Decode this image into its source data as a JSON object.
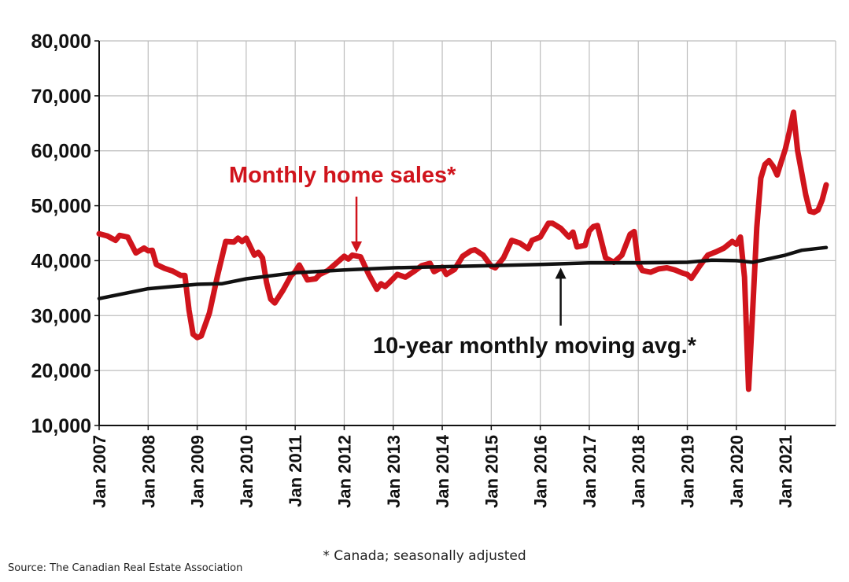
{
  "chart_data": {
    "type": "line",
    "title": "",
    "xlabel": "",
    "ylabel": "",
    "ylim": [
      10000,
      80000
    ],
    "xlim": [
      "2007-01",
      "2021-11"
    ],
    "grid": true,
    "ytick_labels": [
      "10,000",
      "20,000",
      "30,000",
      "40,000",
      "50,000",
      "60,000",
      "70,000",
      "80,000"
    ],
    "ytick_values": [
      10000,
      20000,
      30000,
      40000,
      50000,
      60000,
      70000,
      80000
    ],
    "xtick_labels": [
      "Jan 2007",
      "Jan 2008",
      "Jan 2009",
      "Jan 2010",
      "Jan 2011",
      "Jan 2012",
      "Jan 2013",
      "Jan 2014",
      "Jan 2015",
      "Jan 2016",
      "Jan 2017",
      "Jan 2018",
      "Jan 2019",
      "Jan 2020",
      "Jan 2021"
    ],
    "xtick_values": [
      "2007-01",
      "2008-01",
      "2009-01",
      "2010-01",
      "2011-01",
      "2012-01",
      "2013-01",
      "2014-01",
      "2015-01",
      "2016-01",
      "2017-01",
      "2018-01",
      "2019-01",
      "2020-01",
      "2021-01"
    ],
    "series": [
      {
        "name": "Monthly home sales*",
        "color": "#d0141c",
        "points": [
          [
            "2007-01",
            44900
          ],
          [
            "2007-03",
            44500
          ],
          [
            "2007-05",
            43700
          ],
          [
            "2007-06",
            44600
          ],
          [
            "2007-08",
            44300
          ],
          [
            "2007-10",
            41400
          ],
          [
            "2007-12",
            42300
          ],
          [
            "2008-01",
            41800
          ],
          [
            "2008-02",
            41900
          ],
          [
            "2008-03",
            39300
          ],
          [
            "2008-05",
            38600
          ],
          [
            "2008-07",
            38100
          ],
          [
            "2008-09",
            37300
          ],
          [
            "2008-10",
            37300
          ],
          [
            "2008-11",
            31000
          ],
          [
            "2008-12",
            26600
          ],
          [
            "2009-01",
            26000
          ],
          [
            "2009-02",
            26300
          ],
          [
            "2009-04",
            30500
          ],
          [
            "2009-06",
            37300
          ],
          [
            "2009-08",
            43500
          ],
          [
            "2009-10",
            43400
          ],
          [
            "2009-11",
            44100
          ],
          [
            "2009-12",
            43500
          ],
          [
            "2010-01",
            44100
          ],
          [
            "2010-03",
            41000
          ],
          [
            "2010-04",
            41500
          ],
          [
            "2010-05",
            40500
          ],
          [
            "2010-06",
            36000
          ],
          [
            "2010-07",
            33000
          ],
          [
            "2010-08",
            32300
          ],
          [
            "2010-10",
            34600
          ],
          [
            "2010-12",
            37300
          ],
          [
            "2011-01",
            38000
          ],
          [
            "2011-02",
            39200
          ],
          [
            "2011-04",
            36500
          ],
          [
            "2011-06",
            36700
          ],
          [
            "2011-07",
            37500
          ],
          [
            "2011-09",
            38200
          ],
          [
            "2011-11",
            39500
          ],
          [
            "2012-01",
            40800
          ],
          [
            "2012-02",
            40300
          ],
          [
            "2012-03",
            41000
          ],
          [
            "2012-05",
            40700
          ],
          [
            "2012-07",
            37500
          ],
          [
            "2012-09",
            34800
          ],
          [
            "2012-10",
            35800
          ],
          [
            "2012-11",
            35300
          ],
          [
            "2012-12",
            36000
          ],
          [
            "2013-02",
            37500
          ],
          [
            "2013-04",
            37000
          ],
          [
            "2013-06",
            38000
          ],
          [
            "2013-08",
            39100
          ],
          [
            "2013-10",
            39500
          ],
          [
            "2013-11",
            38000
          ],
          [
            "2014-01",
            38800
          ],
          [
            "2014-02",
            37500
          ],
          [
            "2014-04",
            38400
          ],
          [
            "2014-06",
            40800
          ],
          [
            "2014-08",
            41800
          ],
          [
            "2014-09",
            42000
          ],
          [
            "2014-11",
            41000
          ],
          [
            "2015-01",
            39000
          ],
          [
            "2015-02",
            38700
          ],
          [
            "2015-04",
            40500
          ],
          [
            "2015-06",
            43700
          ],
          [
            "2015-08",
            43200
          ],
          [
            "2015-10",
            42200
          ],
          [
            "2015-11",
            43700
          ],
          [
            "2016-01",
            44300
          ],
          [
            "2016-03",
            46800
          ],
          [
            "2016-04",
            46800
          ],
          [
            "2016-06",
            45900
          ],
          [
            "2016-08",
            44300
          ],
          [
            "2016-09",
            45200
          ],
          [
            "2016-10",
            42500
          ],
          [
            "2016-12",
            42800
          ],
          [
            "2017-01",
            45400
          ],
          [
            "2017-02",
            46200
          ],
          [
            "2017-03",
            46400
          ],
          [
            "2017-05",
            40500
          ],
          [
            "2017-07",
            39700
          ],
          [
            "2017-09",
            41000
          ],
          [
            "2017-11",
            44800
          ],
          [
            "2017-12",
            45300
          ],
          [
            "2018-01",
            39500
          ],
          [
            "2018-02",
            38200
          ],
          [
            "2018-04",
            37900
          ],
          [
            "2018-06",
            38500
          ],
          [
            "2018-08",
            38700
          ],
          [
            "2018-10",
            38300
          ],
          [
            "2018-12",
            37700
          ],
          [
            "2019-01",
            37500
          ],
          [
            "2019-02",
            36800
          ],
          [
            "2019-04",
            39000
          ],
          [
            "2019-06",
            41000
          ],
          [
            "2019-08",
            41600
          ],
          [
            "2019-10",
            42300
          ],
          [
            "2019-12",
            43500
          ],
          [
            "2020-01",
            43000
          ],
          [
            "2020-02",
            44300
          ],
          [
            "2020-03",
            37000
          ],
          [
            "2020-04",
            16600
          ],
          [
            "2020-05",
            31000
          ],
          [
            "2020-06",
            46000
          ],
          [
            "2020-07",
            55000
          ],
          [
            "2020-08",
            57500
          ],
          [
            "2020-09",
            58200
          ],
          [
            "2020-10",
            57200
          ],
          [
            "2020-11",
            55600
          ],
          [
            "2020-12",
            58000
          ],
          [
            "2021-01",
            60300
          ],
          [
            "2021-02",
            63500
          ],
          [
            "2021-03",
            67000
          ],
          [
            "2021-04",
            60000
          ],
          [
            "2021-05",
            56000
          ],
          [
            "2021-06",
            52000
          ],
          [
            "2021-07",
            49000
          ],
          [
            "2021-08",
            48800
          ],
          [
            "2021-09",
            49200
          ],
          [
            "2021-10",
            51000
          ],
          [
            "2021-11",
            53800
          ]
        ]
      },
      {
        "name": "10-year monthly moving avg.*",
        "color": "#111111",
        "points": [
          [
            "2007-01",
            33100
          ],
          [
            "2008-01",
            34900
          ],
          [
            "2009-01",
            35700
          ],
          [
            "2009-07",
            35800
          ],
          [
            "2010-01",
            36700
          ],
          [
            "2011-01",
            37800
          ],
          [
            "2012-01",
            38300
          ],
          [
            "2013-01",
            38700
          ],
          [
            "2014-01",
            38900
          ],
          [
            "2015-01",
            39100
          ],
          [
            "2016-01",
            39300
          ],
          [
            "2017-01",
            39600
          ],
          [
            "2018-01",
            39600
          ],
          [
            "2019-01",
            39700
          ],
          [
            "2019-07",
            40100
          ],
          [
            "2020-01",
            40000
          ],
          [
            "2020-05",
            39700
          ],
          [
            "2021-01",
            41000
          ],
          [
            "2021-05",
            41900
          ],
          [
            "2021-11",
            42400
          ]
        ]
      }
    ],
    "annotations": [
      {
        "text": "Monthly home sales*",
        "series": "Monthly home sales*",
        "points_to": [
          "2012-04",
          41200
        ]
      },
      {
        "text": "10-year monthly moving avg.*",
        "series": "10-year monthly moving avg.*",
        "points_to": [
          "2016-06",
          39300
        ]
      }
    ]
  },
  "footnote": "* Canada; seasonally adjusted",
  "source": "Source: The Canadian Real Estate Association"
}
